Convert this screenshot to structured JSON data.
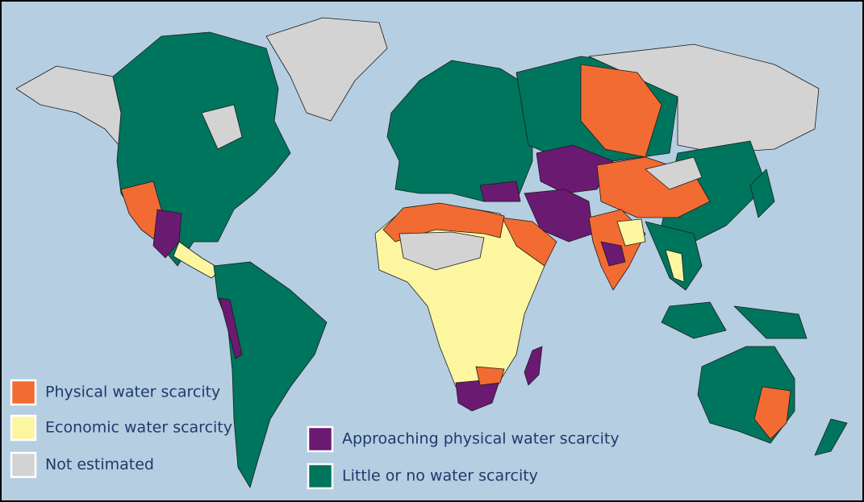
{
  "legend": {
    "items": [
      {
        "label": "Physical water scarcity",
        "color": "#f26b32"
      },
      {
        "label": "Economic water scarcity",
        "color": "#fdf6a0"
      },
      {
        "label": "Not estimated",
        "color": "#d3d3d3"
      },
      {
        "label": "Approaching physical water scarcity",
        "color": "#6b1a72"
      },
      {
        "label": "Little or no water scarcity",
        "color": "#00755e"
      }
    ]
  }
}
